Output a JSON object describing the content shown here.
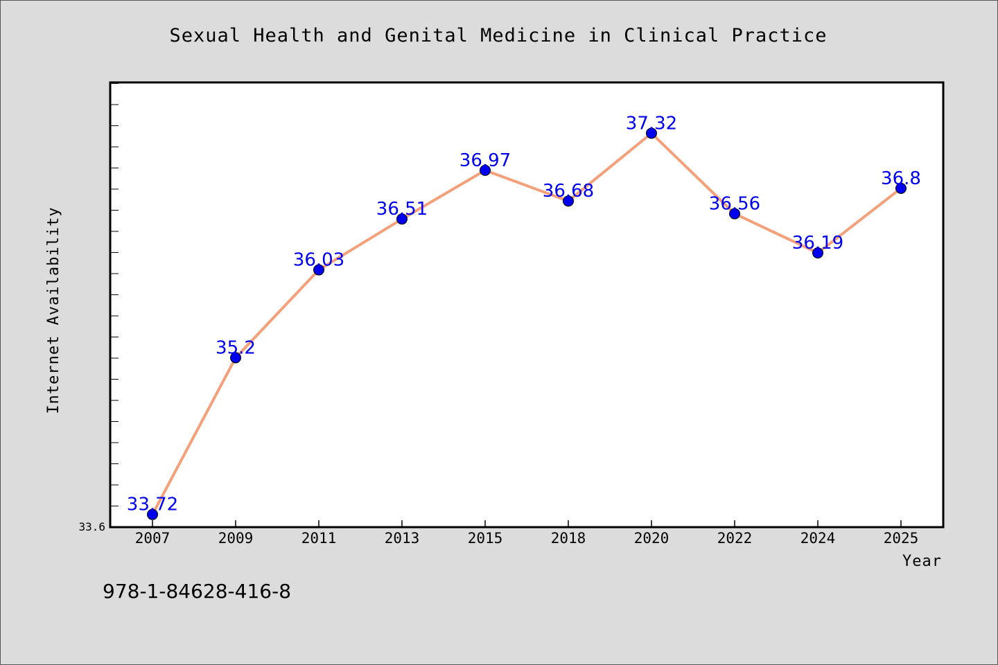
{
  "chart_data": {
    "type": "line",
    "title": "Sexual Health and Genital Medicine in Clinical Practice",
    "xlabel": "Year",
    "ylabel": "Internet Availability",
    "categories": [
      "2007",
      "2009",
      "2011",
      "2013",
      "2015",
      "2018",
      "2020",
      "2022",
      "2024",
      "2025"
    ],
    "series": [
      {
        "values": [
          33.72,
          35.2,
          36.03,
          36.51,
          36.97,
          36.68,
          37.32,
          36.56,
          36.19,
          36.8
        ],
        "labels": [
          "33.72",
          "35.2",
          "36.03",
          "36.51",
          "36.97",
          "36.68",
          "37.32",
          "36.56",
          "36.19",
          "36.8"
        ],
        "line_color": "#f4a07a",
        "marker_color": "#0000ee"
      }
    ],
    "ylim": [
      33.6,
      37.8
    ],
    "y_min_label": "33.6",
    "grid": false,
    "legend": "none"
  },
  "footer": {
    "isbn": "978-1-84628-416-8"
  }
}
